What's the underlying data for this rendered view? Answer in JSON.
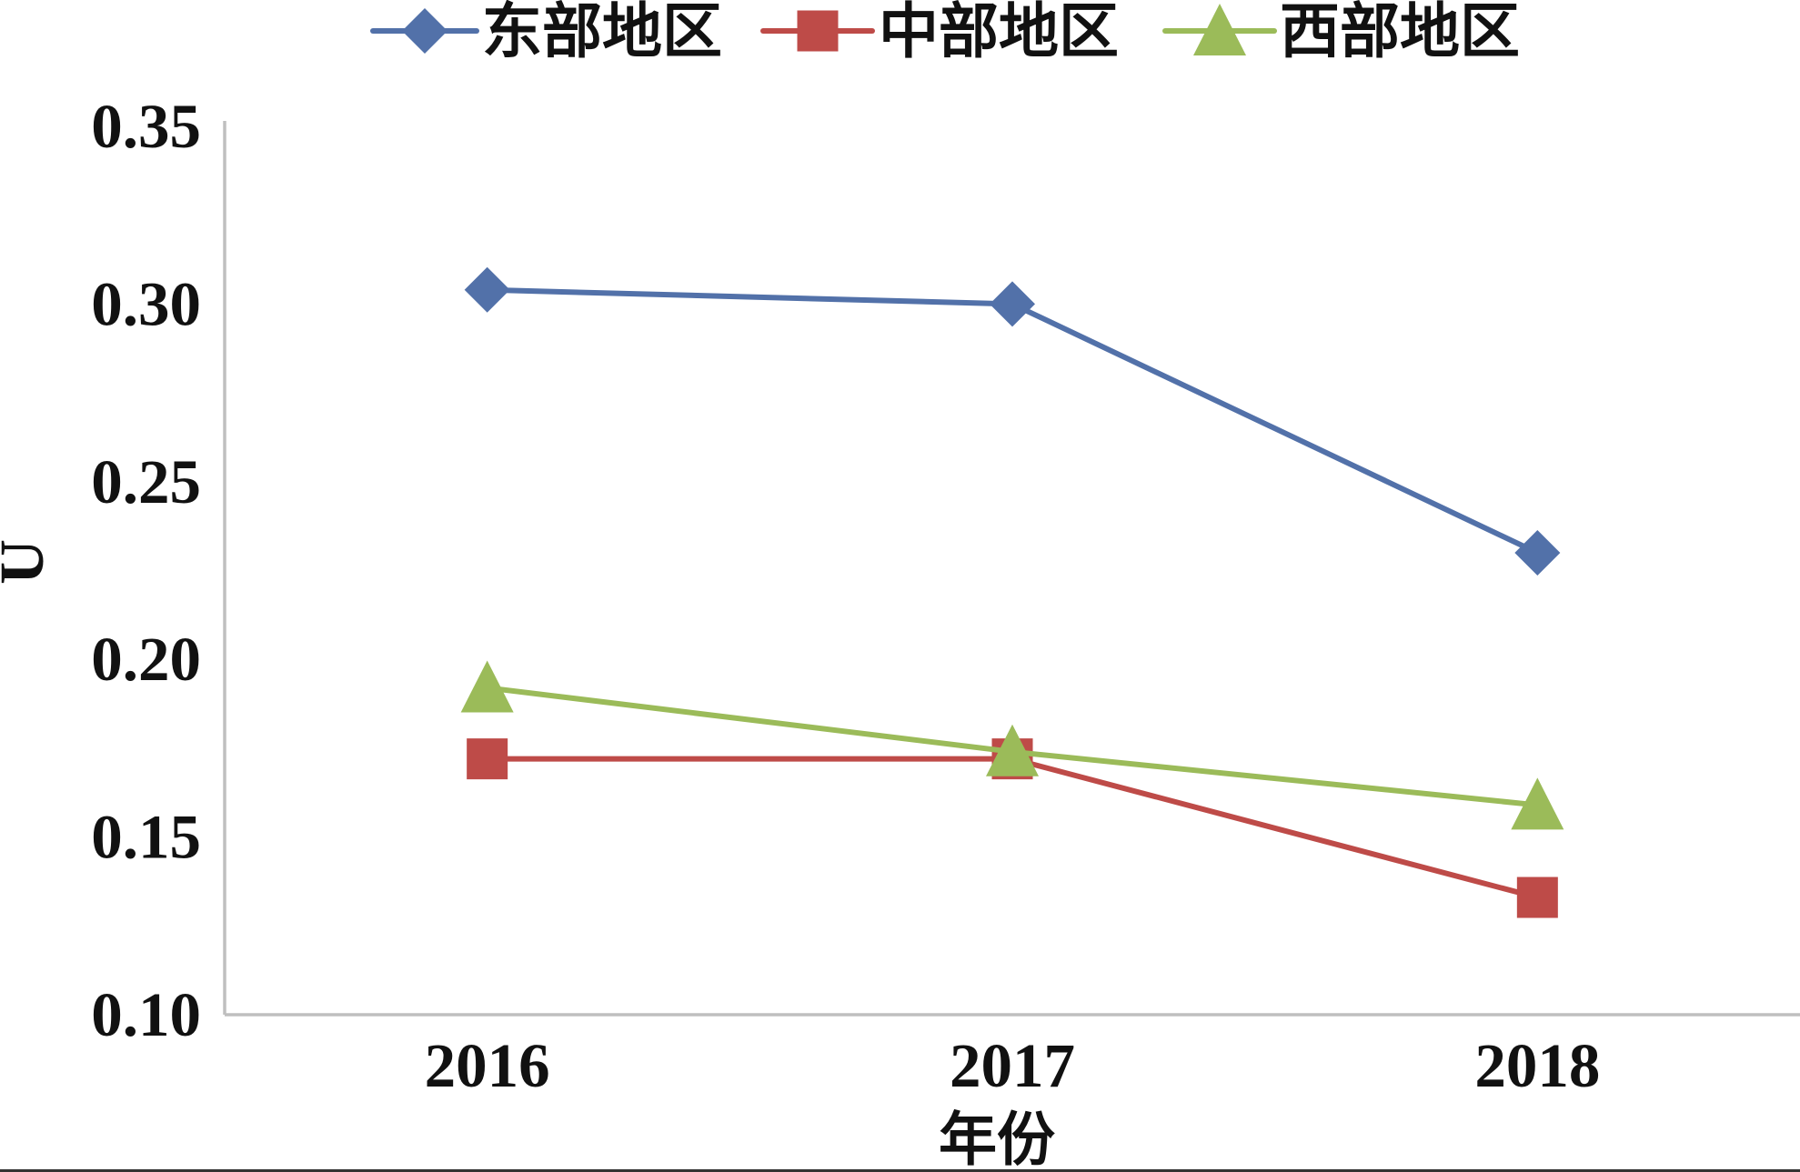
{
  "chart_data": {
    "type": "line",
    "xlabel": "年份",
    "ylabel": "U",
    "categories": [
      "2016",
      "2017",
      "2018"
    ],
    "ylim": [
      0.1,
      0.35
    ],
    "ytick_labels": [
      "0.10",
      "0.15",
      "0.20",
      "0.25",
      "0.30",
      "0.35"
    ],
    "grid": false,
    "legend": "top",
    "axis_color": "#BFBFBF",
    "series": [
      {
        "name": "东部地区",
        "values": [
          0.304,
          0.3,
          0.23
        ],
        "color": "#5271A9",
        "marker": "diamond"
      },
      {
        "name": "中部地区",
        "values": [
          0.172,
          0.172,
          0.133
        ],
        "color": "#BE4B48",
        "marker": "square"
      },
      {
        "name": "西部地区",
        "values": [
          0.192,
          0.174,
          0.159
        ],
        "color": "#9BBB59",
        "marker": "triangle"
      }
    ]
  }
}
